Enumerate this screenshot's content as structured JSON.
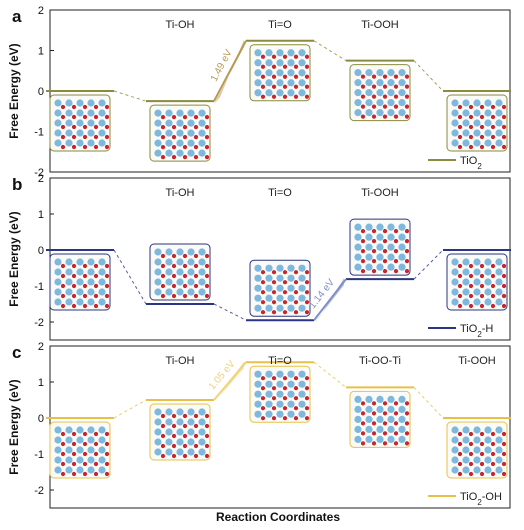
{
  "figure": {
    "xlabel": "Reaction Coordinates"
  },
  "chart_data": [
    {
      "type": "line",
      "panel": "a",
      "ylabel": "Free Energy (eV)",
      "ylim": [
        -2,
        2
      ],
      "yticks": [
        "2",
        "1",
        "0",
        "-1",
        "-2"
      ],
      "series_name": "TiO2",
      "legend_main": "TiO",
      "legend_sub": "2",
      "legend_placement": "bottom-right",
      "color": "#8b8a3e",
      "states": [
        {
          "label": "",
          "energy": 0.0
        },
        {
          "label": "Ti-OH",
          "energy": -0.25
        },
        {
          "label": "Ti=O",
          "energy": 1.24
        },
        {
          "label": "Ti-OOH",
          "energy": 0.75
        },
        {
          "label": "",
          "energy": 0.0
        }
      ],
      "barrier": {
        "text": "1.49 eV",
        "from": 1,
        "to": 2,
        "color": "#b89a55"
      }
    },
    {
      "type": "line",
      "panel": "b",
      "ylabel": "Free Energy (eV)",
      "ylim": [
        -2.5,
        2
      ],
      "yticks": [
        "2",
        "1",
        "0",
        "-1",
        "-2"
      ],
      "series_name": "TiO2-H",
      "legend_main": "TiO",
      "legend_sub": "2",
      "legend_tail": "-H",
      "legend_placement": "bottom-right",
      "color": "#2b3580",
      "states": [
        {
          "label": "",
          "energy": 0.0
        },
        {
          "label": "Ti-OH",
          "energy": -1.5
        },
        {
          "label": "Ti=O",
          "energy": -1.95
        },
        {
          "label": "Ti-OOH",
          "energy": -0.81
        },
        {
          "label": "",
          "energy": 0.0
        }
      ],
      "barrier": {
        "text": "1.14 eV",
        "from": 2,
        "to": 3,
        "color": "#7f8fc8"
      }
    },
    {
      "type": "line",
      "panel": "c",
      "ylabel": "Free Energy (eV)",
      "ylim": [
        -2.5,
        2
      ],
      "yticks": [
        "2",
        "1",
        "0",
        "-1",
        "-2"
      ],
      "series_name": "TiO2-OH",
      "legend_main": "TiO",
      "legend_sub": "2",
      "legend_tail": "-OH",
      "legend_placement": "bottom-right",
      "color": "#e7c04a",
      "states": [
        {
          "label": "",
          "energy": 0.0
        },
        {
          "label": "Ti-OH",
          "energy": 0.5
        },
        {
          "label": "Ti=O",
          "energy": 1.55
        },
        {
          "label": "Ti-OO-Ti",
          "energy": 0.85
        },
        {
          "label": "Ti-OOH",
          "energy": 0.0
        }
      ],
      "barrier": {
        "text": "1.05 eV",
        "from": 1,
        "to": 2,
        "color": "#efd27a"
      }
    }
  ]
}
